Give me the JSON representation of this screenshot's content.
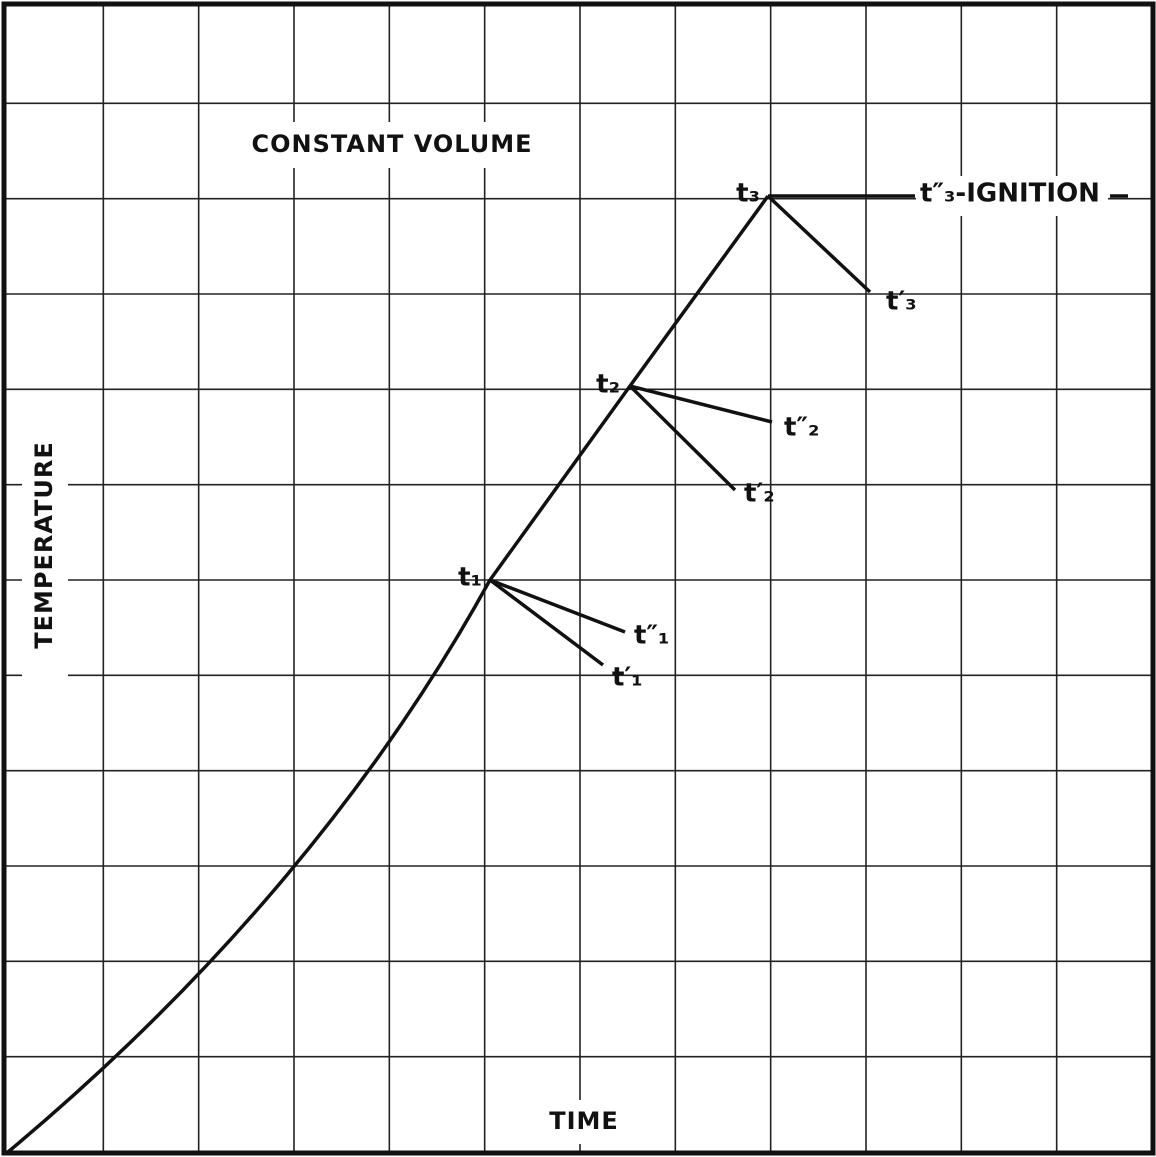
{
  "title": "CONSTANT VOLUME",
  "x_label": "TIME",
  "y_label": "TEMPERATURE",
  "points": [
    {
      "label": "t₁",
      "prime": "t′₁",
      "double_prime": "t″₁"
    },
    {
      "label": "t₂",
      "prime": "t′₂",
      "double_prime": "t″₂"
    },
    {
      "label": "t₃",
      "prime": "t′₃",
      "double_prime": "t″₃-IGNITION"
    }
  ]
}
